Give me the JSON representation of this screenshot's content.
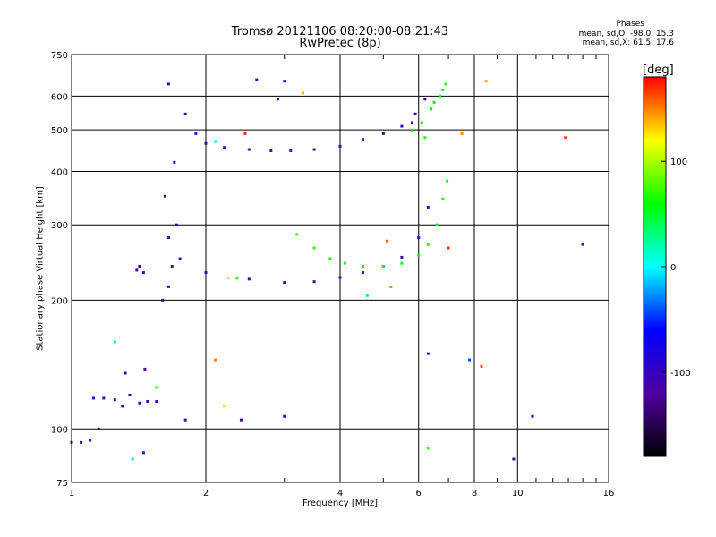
{
  "header": {
    "title_line1": "Tromsø 20121106 08:20:00-08:21:43",
    "title_line2": "RwPretec (8p)",
    "stats_heading": "Phases",
    "stats_o": "mean, sd,O: -98.0, 15.3",
    "stats_x": "mean, sd,X:  61.5, 17.6"
  },
  "colorbar": {
    "unit": "[deg]",
    "ticks": [
      "100",
      "0",
      "-100"
    ],
    "range": [
      -180,
      180
    ],
    "colormap": [
      "#000000",
      "#5000a0",
      "#0000ff",
      "#00ffff",
      "#00ff00",
      "#ffff00",
      "#ff0000"
    ]
  },
  "chart_data": {
    "type": "scatter",
    "xlabel": "Frequency [MHz]",
    "ylabel": "Stationary phase Virtual Height [km]",
    "xscale": "log",
    "yscale": "log",
    "xlim": [
      1,
      16
    ],
    "ylim": [
      75,
      750
    ],
    "xticks": [
      "1",
      "2",
      "4",
      "6",
      "8",
      "10",
      "16"
    ],
    "xtick_values": [
      1,
      2,
      4,
      6,
      8,
      10,
      16
    ],
    "yticks": [
      "750",
      "600",
      "500",
      "400",
      "300",
      "200",
      "100",
      "75"
    ],
    "ytick_values": [
      750,
      600,
      500,
      400,
      300,
      200,
      100,
      75
    ],
    "grid": true,
    "series": [
      {
        "points": [
          [
            1.0,
            93,
            -120
          ],
          [
            1.05,
            93,
            -118
          ],
          [
            1.1,
            94,
            -115
          ],
          [
            1.15,
            100,
            -110
          ],
          [
            1.12,
            118,
            -112
          ],
          [
            1.18,
            118,
            -110
          ],
          [
            1.25,
            117,
            -108
          ],
          [
            1.3,
            113,
            -105
          ],
          [
            1.35,
            120,
            -110
          ],
          [
            1.42,
            115,
            -112
          ],
          [
            1.48,
            116,
            -110
          ],
          [
            1.55,
            116,
            -112
          ],
          [
            1.32,
            135,
            -110
          ],
          [
            1.46,
            138,
            -115
          ],
          [
            1.4,
            235,
            -110
          ],
          [
            1.42,
            240,
            -105
          ],
          [
            1.45,
            232,
            -112
          ],
          [
            1.6,
            200,
            -105
          ],
          [
            1.65,
            280,
            -110
          ],
          [
            1.7,
            420,
            -105
          ],
          [
            1.62,
            350,
            -110
          ],
          [
            1.68,
            240,
            -108
          ],
          [
            1.72,
            300,
            -100
          ],
          [
            1.65,
            215,
            -115
          ],
          [
            1.75,
            250,
            -112
          ],
          [
            1.8,
            545,
            -110
          ],
          [
            1.9,
            490,
            -105
          ],
          [
            2.0,
            465,
            -108
          ],
          [
            2.2,
            455,
            -110
          ],
          [
            2.5,
            450,
            -115
          ],
          [
            2.8,
            447,
            -118
          ],
          [
            3.1,
            447,
            -120
          ],
          [
            3.5,
            450,
            -118
          ],
          [
            4.0,
            458,
            -115
          ],
          [
            4.5,
            475,
            -110
          ],
          [
            5.0,
            490,
            -108
          ],
          [
            5.5,
            510,
            -105
          ],
          [
            5.9,
            545,
            -110
          ],
          [
            6.2,
            590,
            -108
          ],
          [
            5.8,
            520,
            -100
          ],
          [
            2.0,
            232,
            -105
          ],
          [
            2.5,
            224,
            -110
          ],
          [
            3.0,
            220,
            -118
          ],
          [
            3.5,
            221,
            -122
          ],
          [
            4.0,
            226,
            -118
          ],
          [
            4.5,
            232,
            -115
          ],
          [
            5.0,
            240,
            -112
          ],
          [
            5.5,
            252,
            -110
          ],
          [
            6.0,
            280,
            -108
          ],
          [
            6.3,
            330,
            -105
          ],
          [
            1.65,
            640,
            -110
          ],
          [
            2.6,
            655,
            -105
          ],
          [
            3.0,
            650,
            -110
          ],
          [
            2.9,
            590,
            -100
          ],
          [
            2.4,
            105,
            -115
          ],
          [
            1.8,
            105,
            -110
          ],
          [
            3.0,
            107,
            -112
          ],
          [
            1.45,
            88,
            -110
          ],
          [
            6.3,
            150,
            -110
          ],
          [
            9.8,
            85,
            -115
          ]
        ]
      },
      {
        "points": [
          [
            3.2,
            285,
            75
          ],
          [
            3.5,
            265,
            70
          ],
          [
            3.8,
            250,
            65
          ],
          [
            4.1,
            244,
            62
          ],
          [
            4.5,
            240,
            60
          ],
          [
            5.0,
            240,
            58
          ],
          [
            5.5,
            244,
            60
          ],
          [
            6.0,
            255,
            62
          ],
          [
            6.3,
            270,
            65
          ],
          [
            6.6,
            300,
            60
          ],
          [
            6.8,
            345,
            62
          ],
          [
            6.95,
            380,
            65
          ],
          [
            5.8,
            500,
            60
          ],
          [
            6.1,
            520,
            62
          ],
          [
            6.4,
            560,
            60
          ],
          [
            6.7,
            600,
            58
          ],
          [
            6.9,
            640,
            62
          ],
          [
            6.5,
            580,
            60
          ],
          [
            6.2,
            480,
            65
          ],
          [
            6.8,
            620,
            55
          ]
        ]
      },
      {
        "points": [
          [
            1.25,
            160,
            30
          ],
          [
            2.1,
            145,
            150
          ],
          [
            2.25,
            225,
            120
          ],
          [
            1.55,
            125,
            80
          ],
          [
            3.3,
            610,
            140
          ],
          [
            7.5,
            490,
            150
          ],
          [
            8.5,
            650,
            140
          ],
          [
            12.8,
            480,
            160
          ],
          [
            7.8,
            145,
            -40
          ],
          [
            8.3,
            140,
            160
          ],
          [
            4.6,
            205,
            30
          ],
          [
            5.2,
            215,
            150
          ],
          [
            2.2,
            113,
            110
          ],
          [
            6.3,
            90,
            80
          ],
          [
            1.37,
            85,
            20
          ],
          [
            2.1,
            470,
            10
          ],
          [
            2.45,
            490,
            170
          ],
          [
            14.0,
            270,
            -120
          ],
          [
            10.8,
            107,
            -100
          ],
          [
            7.0,
            265,
            170
          ],
          [
            5.1,
            275,
            160
          ],
          [
            2.35,
            225,
            75
          ]
        ]
      }
    ]
  }
}
